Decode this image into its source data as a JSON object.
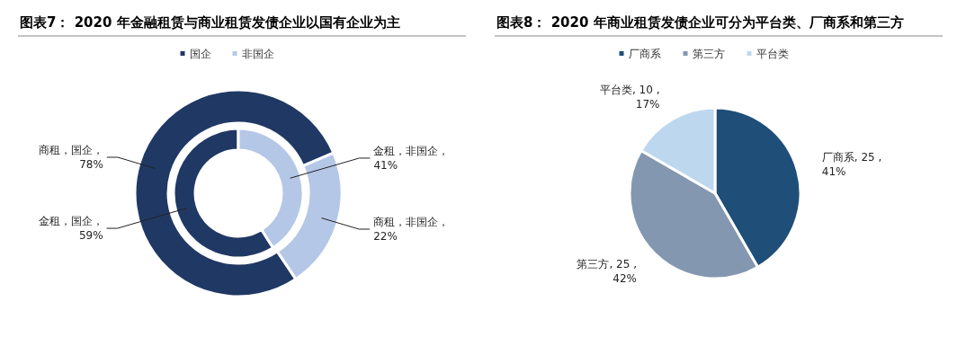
{
  "chart_data": [
    {
      "type": "donut",
      "title": "图表7：  2020 年金融租赁与商业租赁发债企业以国有企业为主",
      "categories": [
        "国企",
        "非国企"
      ],
      "colors": [
        "#203864",
        "#b4c7e7"
      ],
      "legend": "top",
      "series": [
        {
          "values": [
            78,
            22
          ],
          "value_labels": [
            "商租，国企，78%",
            "商租，非国企，22%"
          ]
        },
        {
          "values": [
            59,
            41
          ],
          "value_labels": [
            "金租，国企，59%",
            "金租，非国企，41%"
          ]
        }
      ]
    },
    {
      "type": "pie",
      "title": "图表8：  2020 年商业租赁发债企业可分为平台类、厂商系和第三方",
      "categories": [
        "厂商系",
        "第三方",
        "平台类"
      ],
      "colors": [
        "#1f4e79",
        "#8497b0",
        "#bdd7ee"
      ],
      "legend": "top",
      "values": [
        25,
        25,
        10
      ],
      "value_labels": [
        "厂商系, 25 ,41%",
        "第三方, 25 ,42%",
        "平台类, 10 ,17%"
      ]
    }
  ]
}
